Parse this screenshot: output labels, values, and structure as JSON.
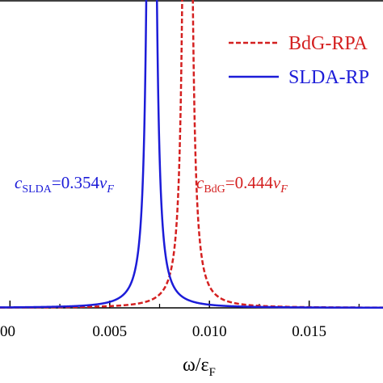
{
  "chart_data": {
    "type": "line",
    "xlabel": "ω/ε",
    "xlabel_sub": "F",
    "xlim": [
      -0.0005,
      0.0187
    ],
    "ylim": [
      0,
      1
    ],
    "x_ticks": [
      0.0,
      0.005,
      0.01,
      0.015
    ],
    "x_tick_labels": [
      "00",
      "0.005",
      "0.010",
      "0.015"
    ],
    "series": [
      {
        "name": "BdG-RPA",
        "color": "#d42020",
        "dash": "dashed",
        "peak_omega": 0.0089,
        "width": 0.00012,
        "amplitude": 6.0
      },
      {
        "name": "SLDA-RPA",
        "color": "#1c1cd8",
        "dash": "solid",
        "peak_omega": 0.0071,
        "width": 0.00012,
        "amplitude": 6.0
      }
    ],
    "legend": {
      "placement": "top-right",
      "entries": [
        {
          "label": "BdG-RPA",
          "color": "#d42020",
          "dash": "dashed"
        },
        {
          "label": "SLDA-RP",
          "color": "#1c1cd8",
          "dash": "solid"
        }
      ]
    },
    "annotations": [
      {
        "base": "c",
        "sub": "SLDA",
        "eq": "=0.354",
        "v": "v",
        "vsub": "F",
        "color": "#1c1cd8"
      },
      {
        "base": "c",
        "sub": "BdG",
        "eq": "=0.444",
        "v": "v",
        "vsub": "F",
        "color": "#d42020"
      }
    ]
  }
}
